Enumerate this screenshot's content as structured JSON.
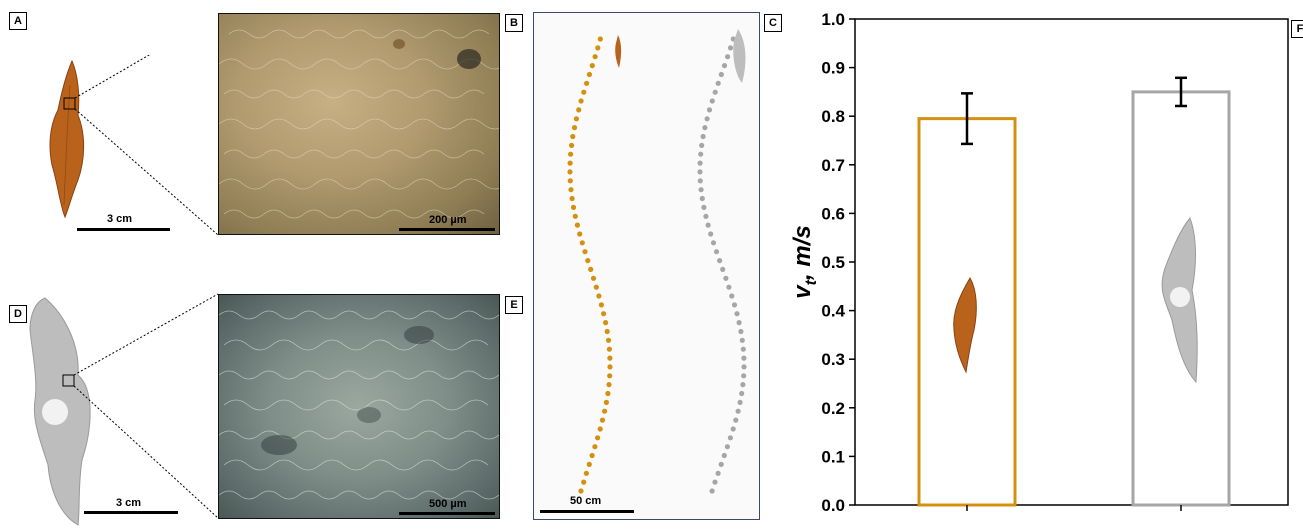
{
  "panels": {
    "a": {
      "label": "A",
      "scale": "3 cm"
    },
    "b": {
      "label": "B",
      "scale": "200 µm"
    },
    "c": {
      "label": "C",
      "scale": "50 cm"
    },
    "d": {
      "label": "D",
      "scale": "3 cm"
    },
    "e": {
      "label": "E",
      "scale": "500 µm"
    },
    "f": {
      "label": "F"
    }
  },
  "colors": {
    "orange_series": "#d4900f",
    "gray_series": "#a6a6a6",
    "leaf_orange": "#b8621c",
    "leaf_gray": "#bdbdbd"
  },
  "chart_data": {
    "type": "bar",
    "categories": [
      "",
      ""
    ],
    "values": [
      0.795,
      0.85
    ],
    "errors": [
      0.052,
      0.029
    ],
    "ylabel": "vt, m/s",
    "ylabel_main": "v",
    "ylabel_sub": "t",
    "ylabel_rest": ", m/s",
    "ylim": [
      0.0,
      1.0
    ],
    "yticks": [
      "0.0",
      "0.1",
      "0.2",
      "0.3",
      "0.4",
      "0.5",
      "0.6",
      "0.7",
      "0.8",
      "0.9",
      "1.0"
    ],
    "bar_style": "hollow",
    "grid": false
  }
}
